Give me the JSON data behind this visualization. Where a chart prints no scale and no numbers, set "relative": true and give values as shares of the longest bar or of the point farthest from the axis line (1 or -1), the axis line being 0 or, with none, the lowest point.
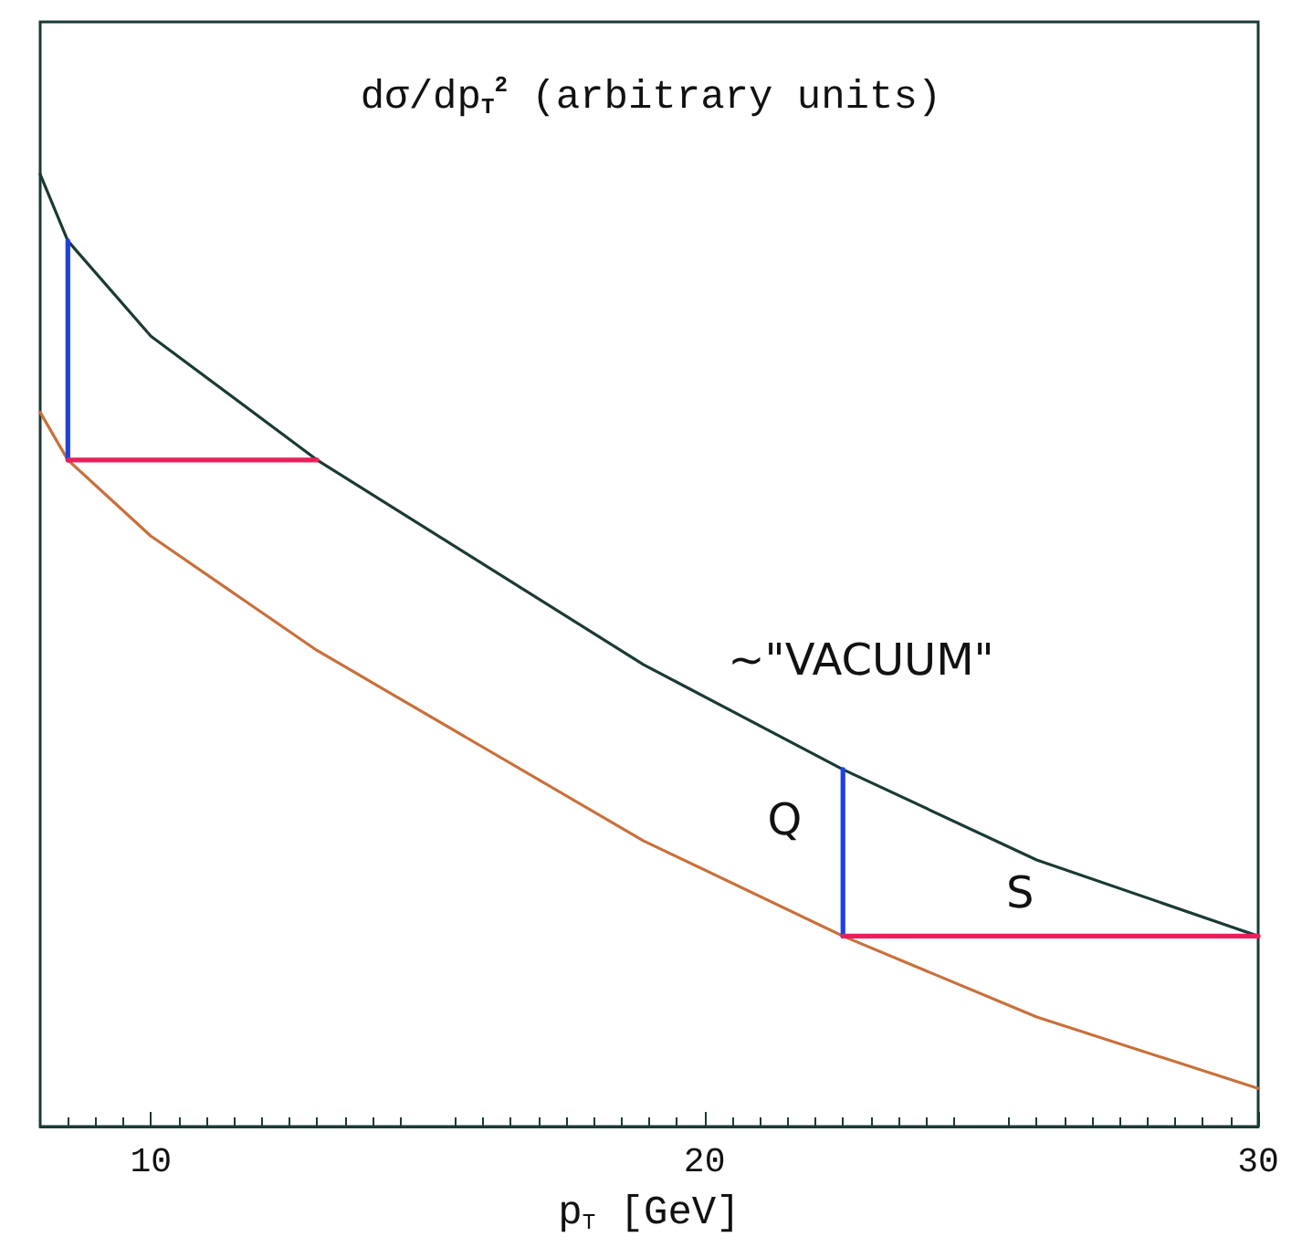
{
  "chart_data": {
    "type": "line",
    "title": "dσ/dp$_{T}$$^{2}$ (arbitrary units)",
    "xlabel": "p$_{T}$ [GeV]",
    "relative": true,
    "x": [
      8,
      8.5,
      10,
      13,
      18.9,
      22.5,
      26,
      30
    ],
    "xlim": [
      8,
      30
    ],
    "xticks": [
      10,
      20,
      30
    ],
    "tick_labels": "x",
    "grid": false,
    "marker": "none",
    "line_style": "solid",
    "series": [
      {
        "color": "#1a3a35",
        "values": [
          1.0,
          0.93,
          0.83,
          0.7,
          0.485,
          0.375,
          0.28,
          0.2
        ]
      },
      {
        "color": "#c8703a",
        "values": [
          0.75,
          0.7,
          0.62,
          0.5,
          0.3,
          0.2,
          0.115,
          0.04
        ]
      },
      {
        "color": "#2040e0",
        "x": [
          8.5,
          8.5
        ],
        "values": [
          0.7,
          0.93
        ]
      },
      {
        "color": "#e8205a",
        "x": [
          8.5,
          13
        ],
        "values": [
          0.7,
          0.7
        ]
      },
      {
        "color": "#2040e0",
        "x": [
          22.5,
          22.5
        ],
        "values": [
          0.2,
          0.375
        ]
      },
      {
        "color": "#e8205a",
        "x": [
          22.5,
          30
        ],
        "values": [
          0.2,
          0.2
        ]
      }
    ],
    "annotations": [
      "Q",
      "S",
      "~\"VACUUM\""
    ]
  }
}
